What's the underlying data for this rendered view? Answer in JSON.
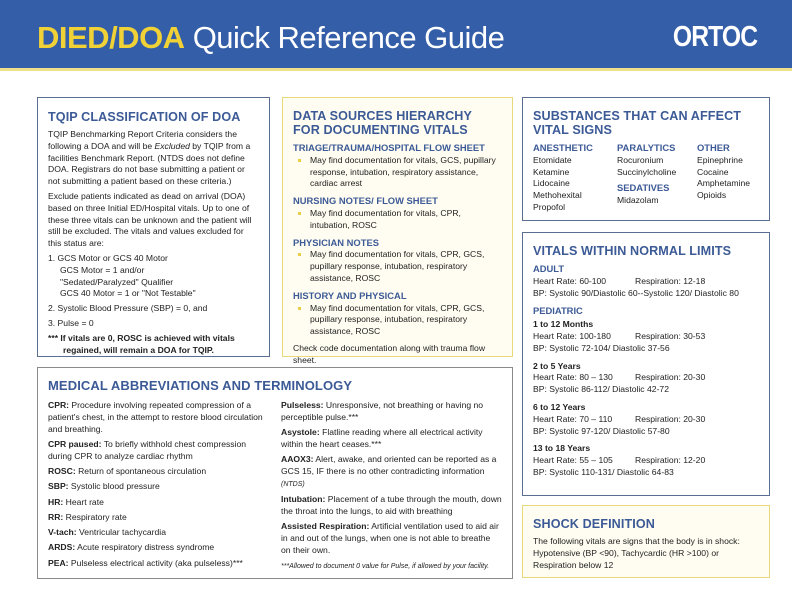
{
  "header": {
    "title_bold": "DIED/DOA",
    "title_rest": " Quick Reference Guide",
    "logo": "ORTOC"
  },
  "tqip": {
    "title": "TQIP CLASSIFICATION OF DOA",
    "p1_a": "TQIP Benchmarking Report Criteria considers the following a DOA and will be ",
    "p1_em": "Excluded",
    "p1_b": " by TQIP from a facilities Benchmark Report. (NTDS does not define DOA. Registrars do not base submitting a patient or not submitting a patient based on these criteria.)",
    "p2": "Exclude patients indicated as dead on arrival (DOA) based on three Initial ED/Hospital vitals. Up to one of these three vitals can be unknown and the patient will still be excluded. The vitals and values excluded for this status are:",
    "item1": [
      "1.  GCS Motor or GCS 40 Motor",
      "GCS Motor = 1 and/or",
      "\"Sedated/Paralyzed\" Qualifier",
      "GCS 40 Motor = 1 or \"Not Testable\""
    ],
    "item2": "2. Systolic Blood Pressure (SBP) = 0, and",
    "item3": "3. Pulse = 0",
    "note": "*** If vitals are 0, ROSC is achieved with vitals regained, will remain a DOA for TQIP."
  },
  "sources": {
    "title": "DATA SOURCES HIERARCHY FOR DOCUMENTING VITALS",
    "sections": [
      {
        "h": "TRIAGE/TRAUMA/HOSPITAL FLOW SHEET",
        "b": "May find documentation for vitals, GCS, pupillary response, intubation, respiratory assistance, cardiac arrest"
      },
      {
        "h": "NURSING NOTES/ FLOW SHEET",
        "b": "May find documentation for vitals, CPR, intubation, ROSC"
      },
      {
        "h": "PHYSICIAN NOTES",
        "b": "May find documentation for vitals, CPR, GCS, pupillary response, intubation, respiratory assistance, ROSC"
      },
      {
        "h": "HISTORY AND PHYSICAL",
        "b": "May find documentation for vitals, CPR, GCS, pupillary response, intubation, respiratory assistance, ROSC"
      }
    ],
    "footer": "Check code documentation along with trauma flow sheet."
  },
  "substances": {
    "title": "SUBSTANCES THAT CAN AFFECT VITAL SIGNS",
    "anesthetic": {
      "h": "ANESTHETIC",
      "items": [
        "Etomidate",
        "Ketamine",
        "Lidocaine",
        "Methohexital",
        "Propofol"
      ]
    },
    "paralytics": {
      "h": "PARALYTICS",
      "items": [
        "Rocuronium",
        "Succinylcholine"
      ]
    },
    "sedatives": {
      "h": "SEDATIVES",
      "items": [
        "Midazolam"
      ]
    },
    "other": {
      "h": "OTHER",
      "items": [
        "Epinephrine",
        "Cocaine",
        "Amphetamine",
        "Opioids"
      ]
    }
  },
  "vitals": {
    "title": "VITALS WITHIN NORMAL LIMITS",
    "adult_h": "ADULT",
    "adult": {
      "hr": "Heart Rate: 60-100",
      "rr": "Respiration: 12-18",
      "bp": "BP: Systolic 90/Diastolic 60--Systolic 120/ Diastolic 80"
    },
    "ped_h": "PEDIATRIC",
    "groups": [
      {
        "age": "1 to 12 Months",
        "hr": "Heart Rate: 100-180",
        "rr": "Respiration: 30-53",
        "bp": "BP: Systolic 72-104/ Diastolic 37-56"
      },
      {
        "age": "2 to 5 Years",
        "hr": "Heart Rate: 80 – 130",
        "rr": "Respiration: 20-30",
        "bp": "BP: Systolic 86-112/ Diastolic 42-72"
      },
      {
        "age": "6 to 12 Years",
        "hr": "Heart Rate: 70 – 110",
        "rr": "Respiration: 20-30",
        "bp": "BP: Systolic 97-120/ Diastolic 57-80"
      },
      {
        "age": "13 to 18 Years",
        "hr": "Heart Rate: 55 – 105",
        "rr": "Respiration: 12-20",
        "bp": "BP: Systolic 110-131/ Diastolic 64-83"
      }
    ]
  },
  "shock": {
    "title": "SHOCK DEFINITION",
    "text": "The following vitals are signs that the body is in shock: Hypotensive (BP <90), Tachycardic (HR >100) or Respiration below 12"
  },
  "abbr": {
    "title": "MEDICAL ABBREVIATIONS AND TERMINOLOGY",
    "left": [
      {
        "t": "CPR:",
        "d": " Procedure involving repeated compression of a patient's chest, in the attempt to restore blood circulation and breathing."
      },
      {
        "t": "CPR paused:",
        "d": " To briefly withhold chest compression during CPR to analyze cardiac rhythm"
      },
      {
        "t": "ROSC:",
        "d": " Return of spontaneous circulation"
      },
      {
        "t": "SBP:",
        "d": " Systolic blood pressure"
      },
      {
        "t": "HR:",
        "d": " Heart rate"
      },
      {
        "t": "RR:",
        "d": " Respiratory rate"
      },
      {
        "t": "V-tach:",
        "d": " Ventricular tachycardia"
      },
      {
        "t": "ARDS:",
        "d": " Acute respiratory distress syndrome"
      },
      {
        "t": "PEA:",
        "d": " Pulseless electrical activity (aka pulseless)***"
      }
    ],
    "right": [
      {
        "t": "Pulseless:",
        "d": " Unresponsive, not breathing or having no perceptible pulse.***"
      },
      {
        "t": "Asystole:",
        "d": " Flatline reading where all electrical activity within the heart ceases.***"
      },
      {
        "t": "AAOX3:",
        "d": " Alert, awake, and oriented can be reported as a GCS 15, IF there is no other contradicting information ",
        "i": "(NTDS)"
      },
      {
        "t": "Intubation:",
        "d": " Placement of a tube through the mouth, down the throat into the lungs, to aid with breathing"
      },
      {
        "t": "Assisted Respiration:",
        "d": " Artificial ventilation used to aid air in and out of the lungs, when one is not able to breathe on their own."
      }
    ],
    "footnote": "***Allowed to document 0 value for Pulse, if allowed by your facility."
  },
  "colors": {
    "header_blue": "#345ea8",
    "title_yellow": "#f1d236",
    "heading_blue": "#3c5a96"
  }
}
